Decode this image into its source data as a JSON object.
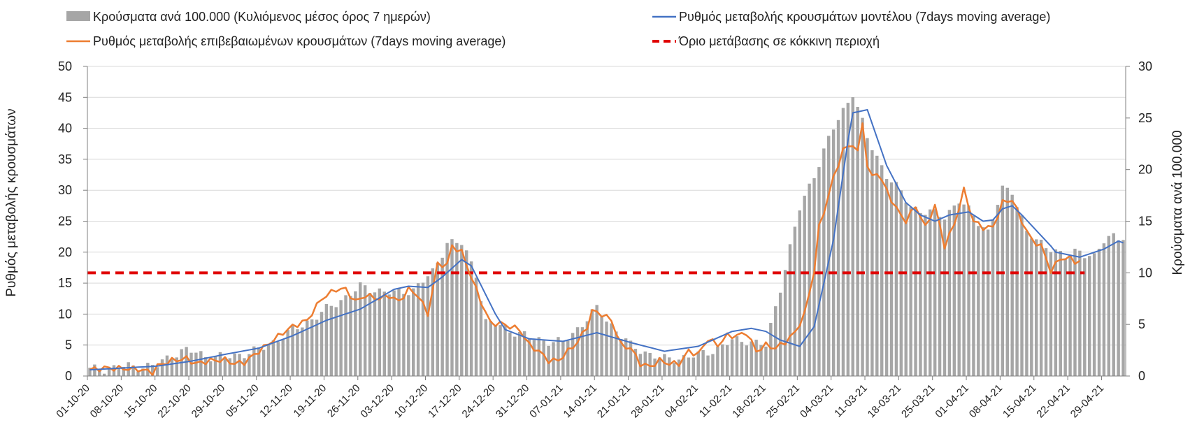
{
  "chart_data": {
    "type": "bar",
    "legend": {
      "placement": "top",
      "entries": [
        {
          "label": "Κρούσματα ανά 100.000 (Κυλιόμενος μέσος όρος 7 ημερών)",
          "color": "#a6a6a6",
          "kind": "bar"
        },
        {
          "label": "Ρυθμός μεταβολής κρουσμάτων μοντέλου (7days moving average)",
          "color": "#4472c4",
          "kind": "line"
        },
        {
          "label": "Ρυθμός μεταβολής επιβεβαιωμένων κρουσμάτων (7days moving average)",
          "color": "#ed7d31",
          "kind": "line"
        },
        {
          "label": "Όριο μετάβασης σε κόκκινη περιοχή",
          "color": "#e00000",
          "kind": "dashed"
        }
      ]
    },
    "y_left": {
      "label": "Ρυθμός μεταβολής κρουσμάτων",
      "range": [
        0,
        50
      ],
      "ticks": [
        "0",
        "5",
        "10",
        "15",
        "20",
        "25",
        "30",
        "35",
        "40",
        "45",
        "50"
      ]
    },
    "y_right": {
      "label": "Κρούσματα ανά 100.000",
      "range": [
        0,
        30
      ],
      "ticks": [
        "0",
        "5",
        "10",
        "15",
        "20",
        "25",
        "30"
      ]
    },
    "grid": true,
    "x_tick_labels": [
      "01-10-20",
      "08-10-20",
      "15-10-20",
      "22-10-20",
      "29-10-20",
      "05-11-20",
      "12-11-20",
      "19-11-20",
      "26-11-20",
      "03-12-20",
      "10-12-20",
      "17-12-20",
      "24-12-20",
      "31-12-20",
      "07-01-21",
      "14-01-21",
      "21-01-21",
      "28-01-21",
      "04-02-21",
      "11-02-21",
      "18-02-21",
      "25-02-21",
      "04-03-21",
      "11-03-21",
      "18-03-21",
      "25-03-21",
      "01-04-21",
      "08-04-21",
      "15-04-21",
      "22-04-21",
      "29-04-21"
    ],
    "x_tick_step_days": 7,
    "num_days": 215,
    "threshold": {
      "name": "Όριο μετάβασης σε κόκκινη περιοχή",
      "value": 10,
      "axis": "right"
    },
    "series_bar_knots": {
      "name": "Κρούσματα ανά 100.000 (Κυλιόμενος μέσος όρος 7 ημερών)",
      "axis": "right",
      "days": [
        0,
        7,
        14,
        17,
        20,
        24,
        28,
        35,
        42,
        48,
        52,
        56,
        60,
        63,
        67,
        71,
        74,
        77,
        80,
        82,
        84,
        86,
        88,
        91,
        98,
        105,
        112,
        119,
        126,
        130,
        133,
        136,
        140,
        147,
        154,
        158,
        161,
        165,
        170,
        172,
        177,
        180,
        182,
        184,
        186,
        189,
        191,
        194,
        196,
        199,
        202,
        205,
        208,
        210,
        212,
        214
      ],
      "values": [
        0.6,
        0.9,
        1.0,
        2.1,
        2.5,
        2.0,
        1.8,
        2.5,
        4.4,
        6.1,
        7.4,
        8.6,
        8.3,
        8.0,
        8.4,
        10.0,
        13.0,
        12.8,
        10.0,
        5.2,
        5.0,
        4.7,
        4.3,
        3.7,
        3.2,
        6.5,
        2.9,
        1.6,
        2.0,
        2.7,
        3.4,
        3.5,
        2.9,
        16.2,
        24.0,
        27.5,
        23.0,
        19.5,
        16.5,
        16.0,
        15.5,
        17.0,
        16.0,
        15.0,
        14.0,
        18.0,
        18.0,
        14.0,
        13.0,
        12.5,
        11.5,
        12.2,
        11.5,
        13.0,
        13.7,
        13.5
      ]
    },
    "series_model": {
      "name": "Ρυθμός μεταβολής κρουσμάτων μοντέλου (7days moving average)",
      "axis": "left",
      "days": [
        0,
        7,
        14,
        21,
        28,
        35,
        42,
        49,
        56,
        63,
        66,
        70,
        73,
        77,
        79,
        84,
        86,
        91,
        98,
        105,
        112,
        119,
        126,
        133,
        137,
        140,
        143,
        147,
        150,
        154,
        157,
        158,
        161,
        165,
        169,
        172,
        175,
        178,
        182,
        185,
        187,
        189,
        191,
        193,
        196,
        199,
        200,
        205,
        210,
        213,
        214
      ],
      "values": [
        1.0,
        1.3,
        1.6,
        2.4,
        3.5,
        4.5,
        6.5,
        9.0,
        10.8,
        14.0,
        14.5,
        14.3,
        16.0,
        18.8,
        17.8,
        10.0,
        7.5,
        6.0,
        5.6,
        7.0,
        5.4,
        4.0,
        4.8,
        7.2,
        7.7,
        7.2,
        5.8,
        4.8,
        8.0,
        22.0,
        38.0,
        42.5,
        43.0,
        34.0,
        28.0,
        26.0,
        25.0,
        26.0,
        26.5,
        25.0,
        25.2,
        27.0,
        27.5,
        26.0,
        23.5,
        21.0,
        20.0,
        19.2,
        20.5,
        21.8,
        21.5
      ]
    },
    "series_confirmed": {
      "name": "Ρυθμός μεταβολής επιβεβαιωμένων κρουσμάτων (7days moving average)",
      "axis": "left",
      "days": [
        0,
        3,
        7,
        10,
        13,
        14,
        17,
        20,
        22,
        25,
        28,
        30,
        32,
        35,
        38,
        40,
        42,
        45,
        48,
        51,
        53,
        55,
        57,
        60,
        62,
        64,
        66,
        68,
        70,
        72,
        74,
        75,
        77,
        79,
        81,
        83,
        85,
        87,
        89,
        91,
        93,
        95,
        97,
        99,
        101,
        103,
        104,
        106,
        108,
        110,
        112,
        114,
        116,
        118,
        120,
        122,
        124,
        126,
        128,
        130,
        132,
        134,
        136,
        138,
        140,
        142,
        144,
        146,
        148,
        150,
        151,
        152,
        154,
        156,
        158,
        159,
        160,
        161,
        162,
        163,
        165,
        167,
        169,
        171,
        173,
        175,
        177,
        179,
        181,
        183,
        185,
        187,
        189,
        191,
        193,
        195,
        197,
        199,
        201,
        203,
        204,
        205
      ],
      "values": [
        1.0,
        1.3,
        1.2,
        1.1,
        0.6,
        1.6,
        2.5,
        2.8,
        2.0,
        2.5,
        2.6,
        2.0,
        2.2,
        4.0,
        5.8,
        7.0,
        8.0,
        9.0,
        12.5,
        14.0,
        14.0,
        12.0,
        13.0,
        12.5,
        13.0,
        12.0,
        14.0,
        13.0,
        10.0,
        18.0,
        18.0,
        21.0,
        20.0,
        16.0,
        12.0,
        8.5,
        8.5,
        8.0,
        7.5,
        5.0,
        4.0,
        2.5,
        2.5,
        4.0,
        5.5,
        8.0,
        10.5,
        10.0,
        9.0,
        5.0,
        4.5,
        2.0,
        1.5,
        2.5,
        2.0,
        2.0,
        4.0,
        3.5,
        6.0,
        5.0,
        6.5,
        6.5,
        7.0,
        4.0,
        5.0,
        4.5,
        5.5,
        7.0,
        10.0,
        17.0,
        24.0,
        26.5,
        32.0,
        36.5,
        37.5,
        36.0,
        41.0,
        34.0,
        32.0,
        33.0,
        30.0,
        27.0,
        25.0,
        27.5,
        24.0,
        27.5,
        21.0,
        24.5,
        30.0,
        25.0,
        24.0,
        24.0,
        28.0,
        28.5,
        25.0,
        22.0,
        21.0,
        17.0,
        19.0,
        19.0,
        18.5,
        18.5
      ]
    }
  }
}
